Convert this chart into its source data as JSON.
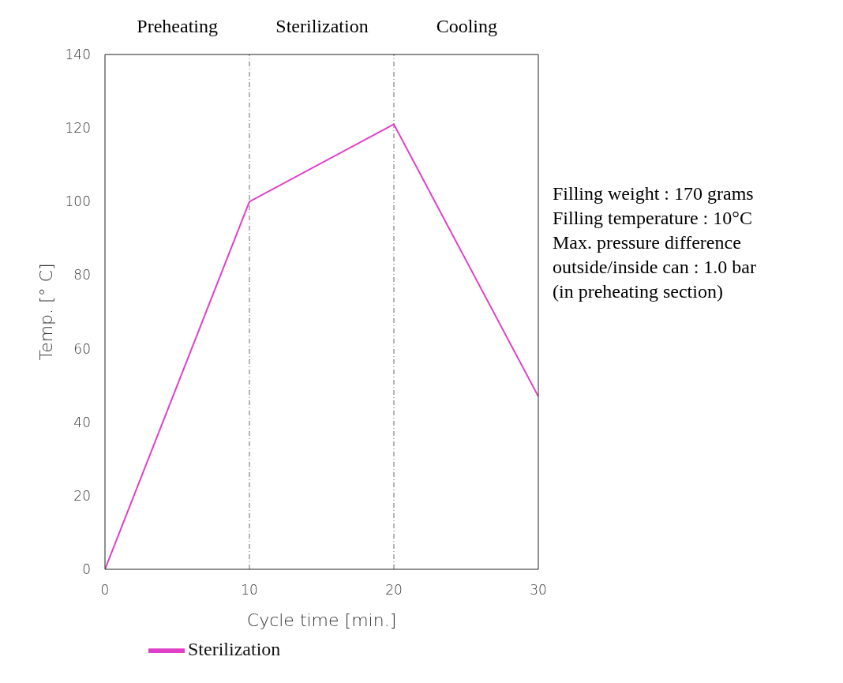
{
  "chart_data": {
    "type": "line",
    "xlabel": "Cycle time [min.]",
    "ylabel": "Temp. [° C]",
    "x": [
      0,
      10,
      20,
      30
    ],
    "series": [
      {
        "name": "Sterilization",
        "color": "#e040c8",
        "values": [
          0,
          100,
          121,
          47
        ]
      }
    ],
    "xlim": [
      0,
      30
    ],
    "xticks": [
      0,
      10,
      20,
      30
    ],
    "ylim": [
      0,
      140
    ],
    "yticks": [
      0,
      20,
      40,
      60,
      80,
      100,
      120,
      140
    ],
    "ref_lines": [
      {
        "axis": "x",
        "value": 10,
        "line_style": "dashdot"
      },
      {
        "axis": "x",
        "value": 20,
        "line_style": "dashdot"
      }
    ],
    "annotations": [
      "Preheating",
      "Sterilization",
      "Cooling",
      "Filling weight : 170 grams",
      "Filling temperature : 10°C",
      "Max. pressure difference",
      "outside/inside can : 1.0 bar",
      "(in preheating section)"
    ],
    "grid": false,
    "legend": "bottom left",
    "marker": "none",
    "line_style": "solid"
  }
}
